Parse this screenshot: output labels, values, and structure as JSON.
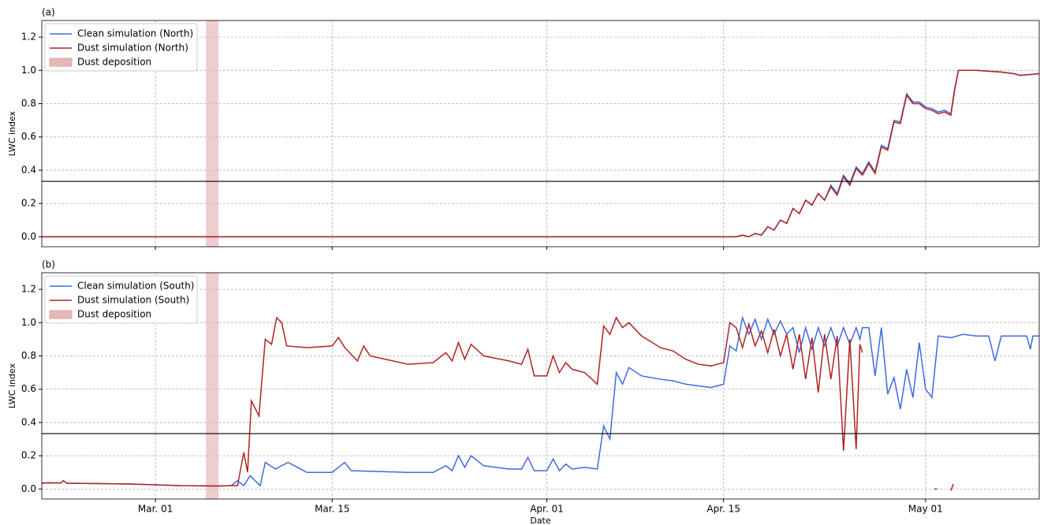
{
  "chart_data": [
    {
      "type": "line",
      "panel_label": "(a)",
      "ylabel": "LWC index",
      "xlim": [
        -9,
        70
      ],
      "xticks": [
        0,
        14,
        31,
        45,
        61
      ],
      "xticklabels": false,
      "ylim": [
        -0.06,
        1.3
      ],
      "yticks": [
        {
          "value": 0,
          "label": "0.0"
        },
        0.2,
        0.4,
        0.6,
        0.8,
        {
          "value": 1,
          "label": "1.0"
        },
        1.2
      ],
      "grid": true,
      "legend": "upper left",
      "hline": 0.333,
      "span": {
        "name": "Dust deposition",
        "x": [
          4,
          5
        ],
        "color": "#e6b8b8"
      },
      "series": [
        {
          "name": "Clean simulation (North)",
          "color": "#4169e1",
          "x": [
            -9,
            46,
            46.5,
            47,
            47.5,
            48,
            48.5,
            49,
            49.5,
            50,
            50.5,
            51,
            51.5,
            52,
            52.5,
            53,
            53.5,
            54,
            54.5,
            55,
            55.5,
            56,
            56.5,
            57,
            57.5,
            58,
            58.5,
            59,
            59.5,
            60,
            60.5,
            61,
            61.5,
            62,
            62.5,
            63,
            63.3,
            63.6,
            65,
            67,
            68,
            68.5,
            70
          ],
          "values": [
            0,
            0,
            0.01,
            0,
            0.02,
            0.01,
            0.06,
            0.04,
            0.1,
            0.08,
            0.17,
            0.14,
            0.22,
            0.19,
            0.26,
            0.22,
            0.31,
            0.26,
            0.37,
            0.32,
            0.42,
            0.38,
            0.45,
            0.39,
            0.55,
            0.53,
            0.7,
            0.69,
            0.86,
            0.81,
            0.81,
            0.78,
            0.77,
            0.75,
            0.76,
            0.74,
            0.89,
            1.0,
            1.0,
            0.99,
            0.98,
            0.97,
            0.98
          ]
        },
        {
          "name": "Dust simulation (North)",
          "color": "#b22222",
          "x": [
            -9,
            46,
            46.5,
            47,
            47.5,
            48,
            48.5,
            49,
            49.5,
            50,
            50.5,
            51,
            51.5,
            52,
            52.5,
            53,
            53.5,
            54,
            54.5,
            55,
            55.5,
            56,
            56.5,
            57,
            57.5,
            58,
            58.5,
            59,
            59.5,
            60,
            60.5,
            61,
            61.5,
            62,
            62.5,
            63,
            63.3,
            63.6,
            65,
            67,
            68,
            68.5,
            70
          ],
          "values": [
            0,
            0,
            0.01,
            0,
            0.02,
            0.01,
            0.06,
            0.04,
            0.1,
            0.08,
            0.17,
            0.14,
            0.22,
            0.19,
            0.26,
            0.22,
            0.3,
            0.25,
            0.36,
            0.31,
            0.41,
            0.37,
            0.44,
            0.38,
            0.54,
            0.52,
            0.69,
            0.68,
            0.85,
            0.8,
            0.8,
            0.77,
            0.76,
            0.74,
            0.75,
            0.73,
            0.88,
            1.0,
            1.0,
            0.99,
            0.98,
            0.97,
            0.98
          ]
        }
      ]
    },
    {
      "type": "line",
      "panel_label": "(b)",
      "ylabel": "LWC index",
      "xlabel": "Date",
      "xlim": [
        -9,
        70
      ],
      "xticks": [
        {
          "value": 0,
          "label": "Mar. 01"
        },
        {
          "value": 14,
          "label": "Mar. 15"
        },
        {
          "value": 31,
          "label": "Apr. 01"
        },
        {
          "value": 45,
          "label": "Apr. 15"
        },
        {
          "value": 61,
          "label": "May 01"
        }
      ],
      "xticklabels": true,
      "ylim": [
        -0.06,
        1.3
      ],
      "yticks": [
        {
          "value": 0,
          "label": "0.0"
        },
        0.2,
        0.4,
        0.6,
        0.8,
        {
          "value": 1,
          "label": "1.0"
        },
        1.2
      ],
      "grid": true,
      "legend": "upper left",
      "hline": 0.333,
      "span": {
        "name": "Dust deposition",
        "x": [
          4,
          5
        ],
        "color": "#e6b8b8"
      },
      "series": [
        {
          "name": "Clean simulation (South)",
          "color": "#4169e1",
          "x": [
            -9,
            -8.5,
            -7.5,
            -7.3,
            -7,
            -2,
            0,
            2,
            5,
            6,
            6.5,
            7,
            7.5,
            8.3,
            8.7,
            9.5,
            10.5,
            12,
            14,
            15,
            15.5,
            20,
            22,
            23,
            23.5,
            24,
            24.5,
            25,
            26,
            28,
            29,
            29.5,
            30,
            31,
            31.5,
            32,
            32.5,
            33,
            34,
            35,
            35.5,
            36,
            36.5,
            37,
            37.5,
            38.5,
            40,
            41,
            42,
            43,
            44,
            45,
            45.5,
            46,
            46.5,
            47,
            47.5,
            48,
            48.5,
            49,
            49.5,
            50,
            50.5,
            51,
            51.5,
            52,
            52.5,
            53,
            53.5,
            54,
            54.5,
            55,
            55.5,
            55.8,
            56,
            56.5,
            57,
            57.5,
            58,
            58.5,
            59,
            59.5,
            60,
            60.5,
            61,
            61.5,
            62,
            63,
            64,
            65,
            66,
            66.5,
            67,
            69,
            69.3,
            69.5,
            70
          ],
          "values": [
            0.035,
            0.037,
            0.036,
            0.05,
            0.035,
            0.03,
            0.025,
            0.02,
            0.018,
            0.02,
            0.05,
            0.02,
            0.08,
            0.02,
            0.16,
            0.12,
            0.16,
            0.1,
            0.1,
            0.16,
            0.11,
            0.1,
            0.1,
            0.14,
            0.11,
            0.2,
            0.13,
            0.2,
            0.14,
            0.12,
            0.12,
            0.19,
            0.11,
            0.11,
            0.18,
            0.11,
            0.15,
            0.12,
            0.13,
            0.12,
            0.38,
            0.3,
            0.7,
            0.63,
            0.73,
            0.68,
            0.66,
            0.65,
            0.63,
            0.62,
            0.61,
            0.63,
            0.86,
            0.83,
            1.03,
            0.93,
            1.02,
            0.9,
            1.02,
            0.93,
            1.01,
            0.93,
            0.97,
            0.82,
            0.97,
            0.84,
            0.97,
            0.86,
            0.97,
            0.86,
            0.97,
            0.87,
            0.97,
            0.9,
            0.97,
            0.97,
            0.68,
            0.97,
            0.57,
            0.67,
            0.48,
            0.72,
            0.55,
            0.88,
            0.6,
            0.55,
            0.92,
            0.91,
            0.93,
            0.92,
            0.92,
            0.77,
            0.92,
            0.92,
            0.84,
            0.92,
            0.92
          ]
        },
        {
          "name": "Dust simulation (South)",
          "color": "#b22222",
          "x": [
            -9,
            -8.5,
            -7.5,
            -7.3,
            -7,
            -2,
            0,
            2,
            5,
            6,
            6.5,
            7,
            7.3,
            7.6,
            8.2,
            8.7,
            9.2,
            9.6,
            10,
            10.4,
            12,
            14,
            14.5,
            15,
            16,
            16.5,
            17,
            20,
            22,
            23,
            23.5,
            24,
            24.5,
            25,
            26,
            28,
            29,
            29.5,
            30,
            31,
            31.5,
            32,
            32.5,
            33,
            34,
            35,
            35.5,
            36,
            36.5,
            37,
            37.5,
            38.5,
            40,
            41,
            42,
            43,
            44,
            45,
            45.5,
            46,
            46.5,
            47,
            47.5,
            48,
            48.5,
            49,
            49.5,
            50,
            50.5,
            51,
            51.5,
            52,
            52.5,
            53,
            53.5,
            54,
            54.5,
            55,
            55.5,
            55.8,
            56,
            57,
            61.7,
            61.9,
            62.5,
            63,
            63.2
          ],
          "values": [
            0.035,
            0.037,
            0.036,
            0.05,
            0.035,
            0.03,
            0.025,
            0.02,
            0.018,
            0.02,
            0.02,
            0.22,
            0.1,
            0.53,
            0.44,
            0.9,
            0.87,
            1.03,
            1.0,
            0.86,
            0.85,
            0.86,
            0.91,
            0.85,
            0.77,
            0.86,
            0.8,
            0.75,
            0.76,
            0.82,
            0.77,
            0.88,
            0.78,
            0.87,
            0.8,
            0.77,
            0.75,
            0.84,
            0.68,
            0.68,
            0.8,
            0.7,
            0.76,
            0.72,
            0.7,
            0.63,
            0.98,
            0.93,
            1.03,
            0.97,
            1.0,
            0.92,
            0.85,
            0.83,
            0.78,
            0.75,
            0.74,
            0.76,
            1.0,
            0.97,
            0.85,
            0.99,
            0.86,
            0.95,
            0.82,
            0.96,
            0.8,
            0.93,
            0.72,
            0.93,
            0.66,
            0.91,
            0.58,
            0.93,
            0.66,
            0.92,
            0.23,
            0.9,
            0.24,
            0.87,
            0.82,
            null,
            0,
            0,
            null,
            -0.01,
            0.03
          ]
        }
      ]
    }
  ]
}
